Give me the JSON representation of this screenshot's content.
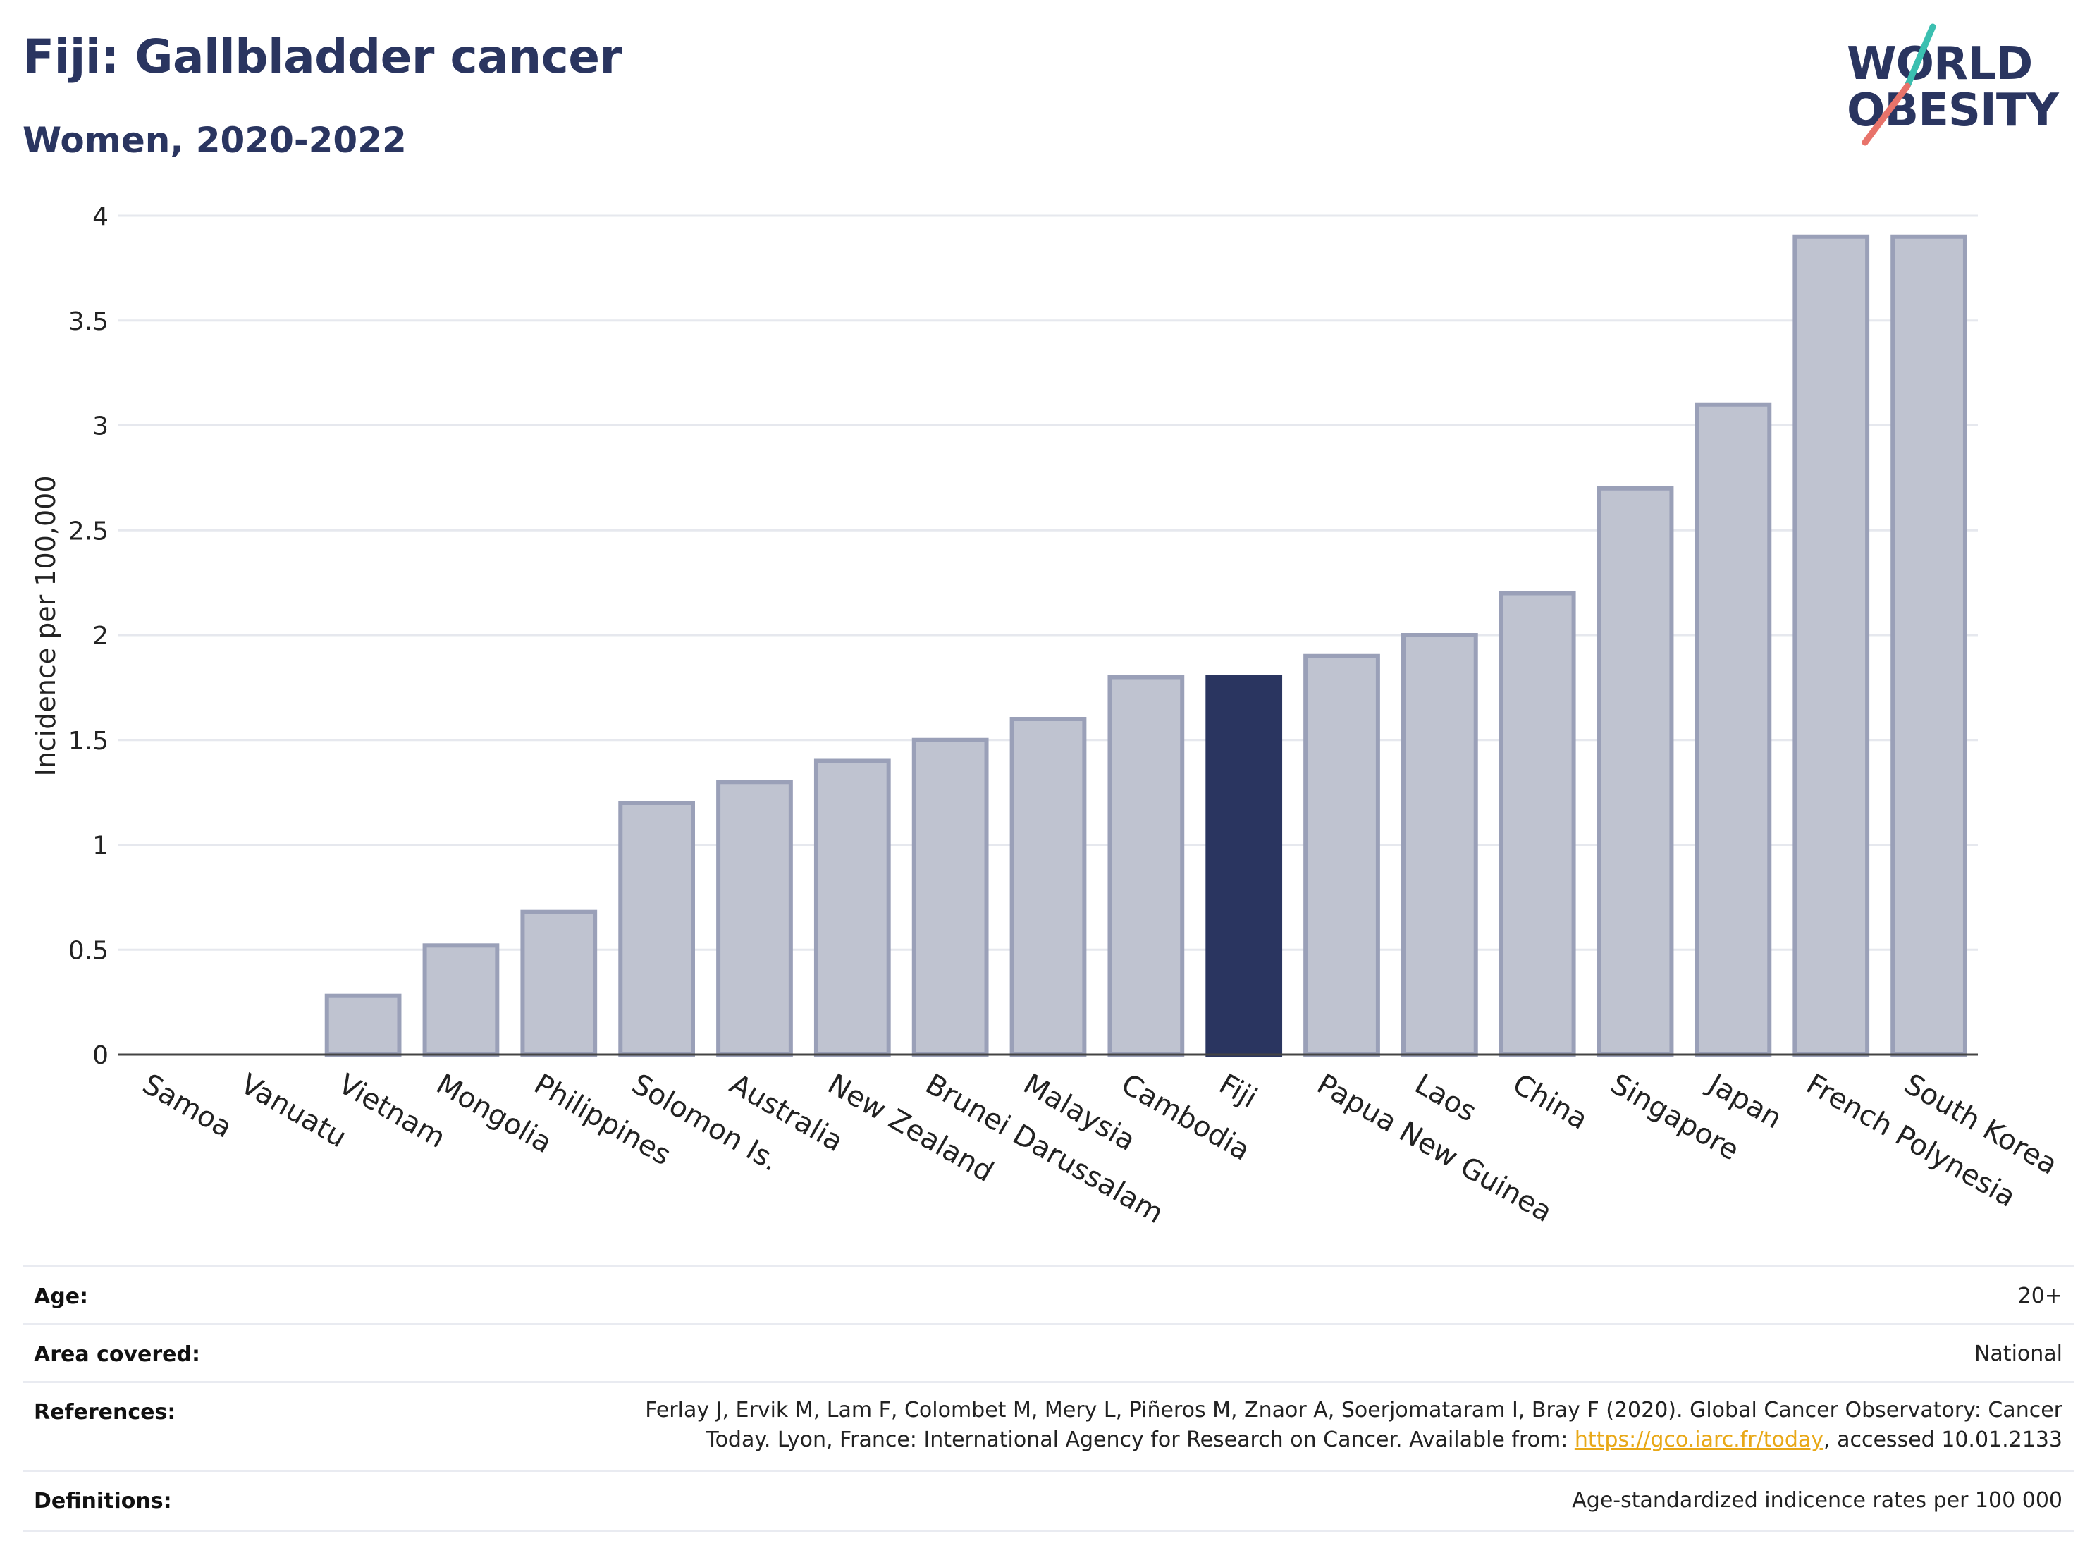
{
  "header": {
    "title": "Fiji: Gallbladder cancer",
    "subtitle": "Women, 2020-2022",
    "logo_text_line1": "WORLD",
    "logo_text_line2": "OBESITY"
  },
  "colors": {
    "highlight_bar": "#2a3560",
    "other_bar_fill": "#bfc3d0",
    "other_bar_stroke": "#9aa0b8",
    "title": "#2a3560",
    "logo_slash_top": "#3bbfb0",
    "logo_slash_bottom": "#e8736a",
    "link": "#e8a818"
  },
  "chart_data": {
    "type": "bar",
    "title": "Fiji: Gallbladder cancer",
    "subtitle": "Women, 2020-2022",
    "xlabel": "",
    "ylabel": "Incidence per 100,000",
    "ylim": [
      0,
      4
    ],
    "yticks": [
      0,
      0.5,
      1,
      1.5,
      2,
      2.5,
      3,
      3.5,
      4
    ],
    "ytick_labels": [
      "0",
      "0.5",
      "1",
      "1.5",
      "2",
      "2.5",
      "3",
      "3.5",
      "4"
    ],
    "grid": true,
    "legend": "none",
    "highlight": "Fiji",
    "categories": [
      "Samoa",
      "Vanuatu",
      "Vietnam",
      "Mongolia",
      "Philippines",
      "Solomon Is.",
      "Australia",
      "New Zealand",
      "Brunei Darussalam",
      "Malaysia",
      "Cambodia",
      "Fiji",
      "Papua New Guinea",
      "Laos",
      "China",
      "Singapore",
      "Japan",
      "French Polynesia",
      "South Korea"
    ],
    "values": [
      0.0,
      0.0,
      0.28,
      0.52,
      0.68,
      1.2,
      1.3,
      1.4,
      1.5,
      1.6,
      1.8,
      1.8,
      1.9,
      2.0,
      2.2,
      2.7,
      3.1,
      3.9,
      3.9
    ]
  },
  "footer": {
    "rows": [
      {
        "label": "Age:",
        "value_lines": [
          "20+"
        ]
      },
      {
        "label": "Area covered:",
        "value_lines": [
          "National"
        ]
      },
      {
        "label": "References:",
        "value_lines": [
          "Ferlay J, Ervik M, Lam F, Colombet M, Mery L, Piñeros M, Znaor A, Soerjomataram I, Bray F (2020). Global Cancer Observatory: Cancer",
          "Today. Lyon, France: International Agency for Research on Cancer. Available from: "
        ],
        "link_text": "https://gco.iarc.fr/today",
        "after_link": ", accessed 10.01.2133"
      },
      {
        "label": "Definitions:",
        "value_lines": [
          "Age-standardized indicence rates per 100 000"
        ]
      }
    ]
  }
}
